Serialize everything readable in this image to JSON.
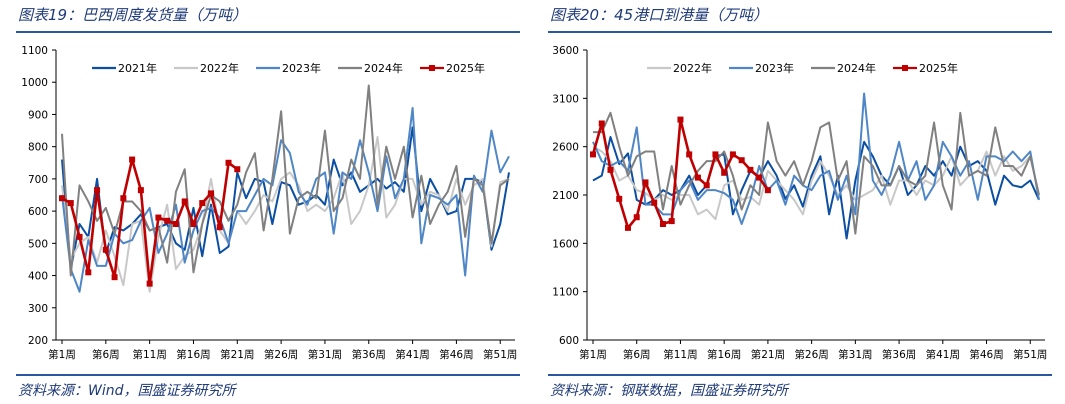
{
  "chart_data": [
    {
      "type": "line",
      "title": "图表19：巴西周度发货量（万吨）",
      "source": "资料来源：Wind，国盛证券研究所",
      "xlabel": "",
      "ylabel": "",
      "ylim": [
        200,
        1100
      ],
      "yticks": [
        "200",
        "300",
        "400",
        "500",
        "600",
        "700",
        "800",
        "900",
        "1000",
        "1100"
      ],
      "xtick_labels": [
        "第1周",
        "第6周",
        "第11周",
        "第16周",
        "第21周",
        "第26周",
        "第31周",
        "第36周",
        "第41周",
        "第46周",
        "第51周"
      ],
      "weeks": 52,
      "legend": "top-center",
      "series": [
        {
          "name": "2021年",
          "color": "#0b4ea2",
          "marker": false,
          "values": [
            760,
            420,
            560,
            520,
            700,
            470,
            550,
            540,
            560,
            590,
            540,
            550,
            560,
            500,
            480,
            610,
            460,
            620,
            470,
            490,
            720,
            640,
            700,
            690,
            560,
            690,
            680,
            620,
            630,
            650,
            620,
            760,
            680,
            720,
            660,
            680,
            700,
            670,
            690,
            660,
            860,
            600,
            700,
            650,
            590,
            600,
            700,
            700,
            690,
            480,
            560,
            720
          ]
        },
        {
          "name": "2022年",
          "color": "#c8c8c8",
          "marker": false,
          "values": [
            680,
            450,
            500,
            520,
            440,
            540,
            460,
            370,
            560,
            570,
            350,
            520,
            620,
            420,
            460,
            480,
            560,
            700,
            540,
            500,
            600,
            560,
            600,
            650,
            630,
            700,
            720,
            680,
            600,
            620,
            600,
            640,
            720,
            560,
            600,
            680,
            830,
            580,
            620,
            700,
            700,
            620,
            660,
            650,
            600,
            700,
            620,
            680,
            700,
            490,
            690,
            700
          ]
        },
        {
          "name": "2023年",
          "color": "#4f86c6",
          "marker": false,
          "values": [
            650,
            420,
            350,
            510,
            430,
            430,
            530,
            500,
            510,
            570,
            610,
            470,
            530,
            620,
            440,
            540,
            600,
            610,
            580,
            500,
            600,
            600,
            650,
            700,
            680,
            820,
            780,
            660,
            620,
            700,
            720,
            530,
            720,
            700,
            820,
            720,
            600,
            770,
            640,
            700,
            920,
            500,
            650,
            640,
            620,
            650,
            400,
            710,
            660,
            850,
            720,
            770
          ]
        },
        {
          "name": "2024年",
          "color": "#808080",
          "marker": false,
          "values": [
            840,
            400,
            680,
            630,
            570,
            610,
            530,
            630,
            630,
            600,
            540,
            550,
            440,
            660,
            730,
            410,
            560,
            650,
            630,
            570,
            620,
            720,
            780,
            540,
            700,
            910,
            530,
            640,
            660,
            640,
            850,
            600,
            640,
            760,
            700,
            990,
            620,
            800,
            700,
            800,
            580,
            710,
            560,
            620,
            660,
            740,
            520,
            700,
            680,
            500,
            680,
            700
          ]
        },
        {
          "name": "2025年",
          "color": "#c00000",
          "marker": true,
          "values": [
            640,
            625,
            520,
            410,
            665,
            480,
            395,
            640,
            760,
            665,
            375,
            580,
            570,
            560,
            630,
            560,
            625,
            655,
            550,
            750,
            730
          ]
        }
      ]
    },
    {
      "type": "line",
      "title": "图表20：45港口到港量（万吨）",
      "source": "资料来源：钢联数据，国盛证券研究所",
      "xlabel": "",
      "ylabel": "",
      "ylim": [
        600,
        3600
      ],
      "yticks": [
        "600",
        "1100",
        "1600",
        "2100",
        "2600",
        "3100",
        "3600"
      ],
      "xtick_labels": [
        "第1周",
        "第6周",
        "第11周",
        "第16周",
        "第21周",
        "第26周",
        "第31周",
        "第36周",
        "第41周",
        "第46周",
        "第51周"
      ],
      "weeks": 52,
      "legend": "top-center",
      "series": [
        {
          "name": "",
          "color": "#0b4ea2",
          "marker": false,
          "values": [
            2250,
            2300,
            2700,
            2420,
            2530,
            2050,
            2000,
            2050,
            2150,
            2100,
            2150,
            2300,
            2100,
            2200,
            2500,
            2520,
            1900,
            2150,
            2350,
            2280,
            2450,
            2300,
            2060,
            2200,
            1980,
            2300,
            2500,
            1900,
            2300,
            1650,
            2250,
            2650,
            2500,
            2300,
            2200,
            2400,
            2100,
            2200,
            2400,
            2300,
            2450,
            2300,
            2600,
            2400,
            2450,
            2350,
            2000,
            2300,
            2200,
            2180,
            2250,
            2050
          ]
        },
        {
          "name": "2022年",
          "color": "#c8c8c8",
          "marker": false,
          "values": [
            2600,
            2550,
            2450,
            2250,
            2300,
            2150,
            2120,
            2050,
            2100,
            2050,
            2100,
            2100,
            1900,
            1950,
            1850,
            2200,
            2250,
            2050,
            2080,
            2000,
            2350,
            2250,
            2150,
            2050,
            1900,
            2250,
            2450,
            2300,
            2100,
            2200,
            2050,
            2100,
            2150,
            2300,
            2000,
            2250,
            2250,
            2100,
            2250,
            2200,
            2300,
            2500,
            2200,
            2300,
            2350,
            2550,
            2300,
            2500,
            2350,
            2400,
            2500,
            2100
          ]
        },
        {
          "name": "2023年",
          "color": "#4f86c6",
          "marker": false,
          "values": [
            2650,
            2450,
            2400,
            2450,
            2350,
            2800,
            2000,
            2000,
            1900,
            1900,
            2150,
            2250,
            2050,
            2150,
            2150,
            2120,
            2050,
            1800,
            2050,
            2400,
            2150,
            2250,
            2000,
            2300,
            2200,
            2150,
            2300,
            2350,
            2050,
            2300,
            1900,
            3150,
            2250,
            2100,
            2300,
            2650,
            2250,
            2450,
            2050,
            2200,
            2650,
            2500,
            2300,
            2450,
            2050,
            2500,
            2500,
            2450,
            2550,
            2450,
            2550,
            2050
          ]
        },
        {
          "name": "2024年",
          "color": "#808080",
          "marker": false,
          "values": [
            2750,
            2750,
            2950,
            2600,
            2300,
            2500,
            2550,
            2550,
            1950,
            2400,
            2000,
            2200,
            2350,
            2450,
            2450,
            2550,
            2300,
            1950,
            2200,
            2100,
            2850,
            2450,
            2300,
            2450,
            2200,
            2450,
            2800,
            2850,
            2250,
            2450,
            1700,
            2500,
            2400,
            2200,
            2200,
            2400,
            2250,
            2200,
            2300,
            2850,
            2200,
            1950,
            2950,
            2300,
            2350,
            2300,
            2800,
            2400,
            2400,
            2300,
            2500,
            2100
          ]
        },
        {
          "name": "2025年",
          "color": "#c00000",
          "marker": true,
          "values": [
            2520,
            2840,
            2360,
            2060,
            1760,
            1870,
            2230,
            2020,
            1800,
            1830,
            2880,
            2520,
            2280,
            2200,
            2520,
            2330,
            2520,
            2460,
            2360,
            2280,
            2150
          ]
        }
      ]
    }
  ]
}
